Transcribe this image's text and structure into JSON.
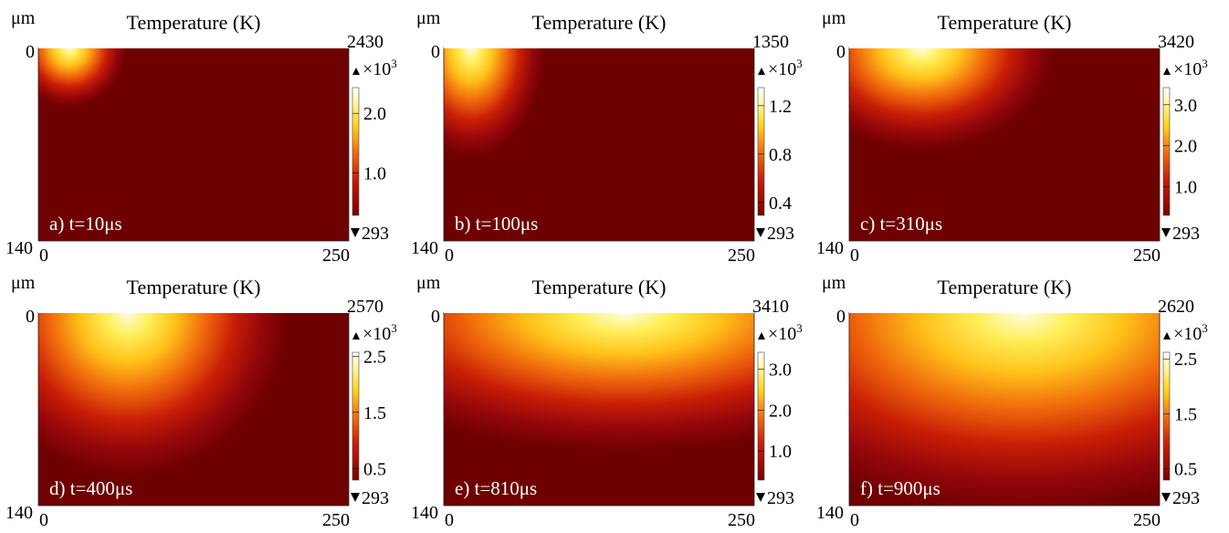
{
  "chart_data": [
    {
      "type": "heatmap",
      "label": "a)",
      "time": "t=10μs",
      "title": "Temperature (K)",
      "y_unit": "μm",
      "x_ticks": [
        "0",
        "250"
      ],
      "y_ticks": [
        "0",
        "140"
      ],
      "xlim": [
        0,
        250
      ],
      "ylim": [
        0,
        140
      ],
      "color_max": "2430",
      "color_min": "293",
      "color_multiplier": "×10",
      "color_exponent": "3",
      "colorbar_ticks": [
        "2.0",
        "1.0"
      ],
      "colorbar_tick_values": [
        2.0,
        1.0
      ],
      "hotspot": {
        "x_center": 25,
        "x_halfwidth": 12,
        "depth": 6
      },
      "max_temperature": 2430,
      "min_temperature": 293
    },
    {
      "type": "heatmap",
      "label": "b)",
      "time": "t=100μs",
      "title": "Temperature (K)",
      "y_unit": "μm",
      "x_ticks": [
        "0",
        "250"
      ],
      "y_ticks": [
        "0",
        "140"
      ],
      "xlim": [
        0,
        250
      ],
      "ylim": [
        0,
        140
      ],
      "color_max": "1350",
      "color_min": "293",
      "color_multiplier": "×10",
      "color_exponent": "3",
      "colorbar_ticks": [
        "1.2",
        "0.8",
        "0.4"
      ],
      "colorbar_tick_values": [
        1.2,
        0.8,
        0.4
      ],
      "hotspot": {
        "x_center": 22,
        "x_halfwidth": 18,
        "depth": 20
      },
      "max_temperature": 1350,
      "min_temperature": 293
    },
    {
      "type": "heatmap",
      "label": "c)",
      "time": "t=310μs",
      "title": "Temperature (K)",
      "y_unit": "μm",
      "x_ticks": [
        "0",
        "250"
      ],
      "y_ticks": [
        "0",
        "140"
      ],
      "xlim": [
        0,
        250
      ],
      "ylim": [
        0,
        140
      ],
      "color_max": "3420",
      "color_min": "293",
      "color_multiplier": "×10",
      "color_exponent": "3",
      "colorbar_ticks": [
        "3.0",
        "2.0",
        "1.0"
      ],
      "colorbar_tick_values": [
        3.0,
        2.0,
        1.0
      ],
      "hotspot": {
        "x_center": 58,
        "x_halfwidth": 40,
        "depth": 18
      },
      "max_temperature": 3420,
      "min_temperature": 293
    },
    {
      "type": "heatmap",
      "label": "d)",
      "time": "t=400μs",
      "title": "Temperature (K)",
      "y_unit": "μm",
      "x_ticks": [
        "0",
        "250"
      ],
      "y_ticks": [
        "0",
        "140"
      ],
      "xlim": [
        0,
        250
      ],
      "ylim": [
        0,
        140
      ],
      "color_max": "2570",
      "color_min": "293",
      "color_multiplier": "×10",
      "color_exponent": "3",
      "colorbar_ticks": [
        "2.5",
        "1.5",
        "0.5"
      ],
      "colorbar_tick_values": [
        2.5,
        1.5,
        0.5
      ],
      "hotspot": {
        "x_center": 72,
        "x_halfwidth": 50,
        "depth": 35
      },
      "max_temperature": 2570,
      "min_temperature": 293
    },
    {
      "type": "heatmap",
      "label": "e)",
      "time": "t=810μs",
      "title": "Temperature (K)",
      "y_unit": "μm",
      "x_ticks": [
        "0",
        "250"
      ],
      "y_ticks": [
        "0",
        "140"
      ],
      "xlim": [
        0,
        250
      ],
      "ylim": [
        0,
        140
      ],
      "color_max": "3410",
      "color_min": "293",
      "color_multiplier": "×10",
      "color_exponent": "3",
      "colorbar_ticks": [
        "3.0",
        "2.0",
        "1.0"
      ],
      "colorbar_tick_values": [
        3.0,
        2.0,
        1.0
      ],
      "hotspot": {
        "x_center": 145,
        "x_halfwidth": 110,
        "depth": 28
      },
      "max_temperature": 3410,
      "min_temperature": 293
    },
    {
      "type": "heatmap",
      "label": "f)",
      "time": "t=900μs",
      "title": "Temperature (K)",
      "y_unit": "μm",
      "x_ticks": [
        "0",
        "250"
      ],
      "y_ticks": [
        "0",
        "140"
      ],
      "xlim": [
        0,
        250
      ],
      "ylim": [
        0,
        140
      ],
      "color_max": "2620",
      "color_min": "293",
      "color_multiplier": "×10",
      "color_exponent": "3",
      "colorbar_ticks": [
        "2.5",
        "1.5",
        "0.5"
      ],
      "colorbar_tick_values": [
        2.5,
        1.5,
        0.5
      ],
      "hotspot": {
        "x_center": 140,
        "x_halfwidth": 115,
        "depth": 45
      },
      "max_temperature": 2620,
      "min_temperature": 293
    }
  ],
  "colors": {
    "background": "#6e0000",
    "white": "#ffffff"
  }
}
